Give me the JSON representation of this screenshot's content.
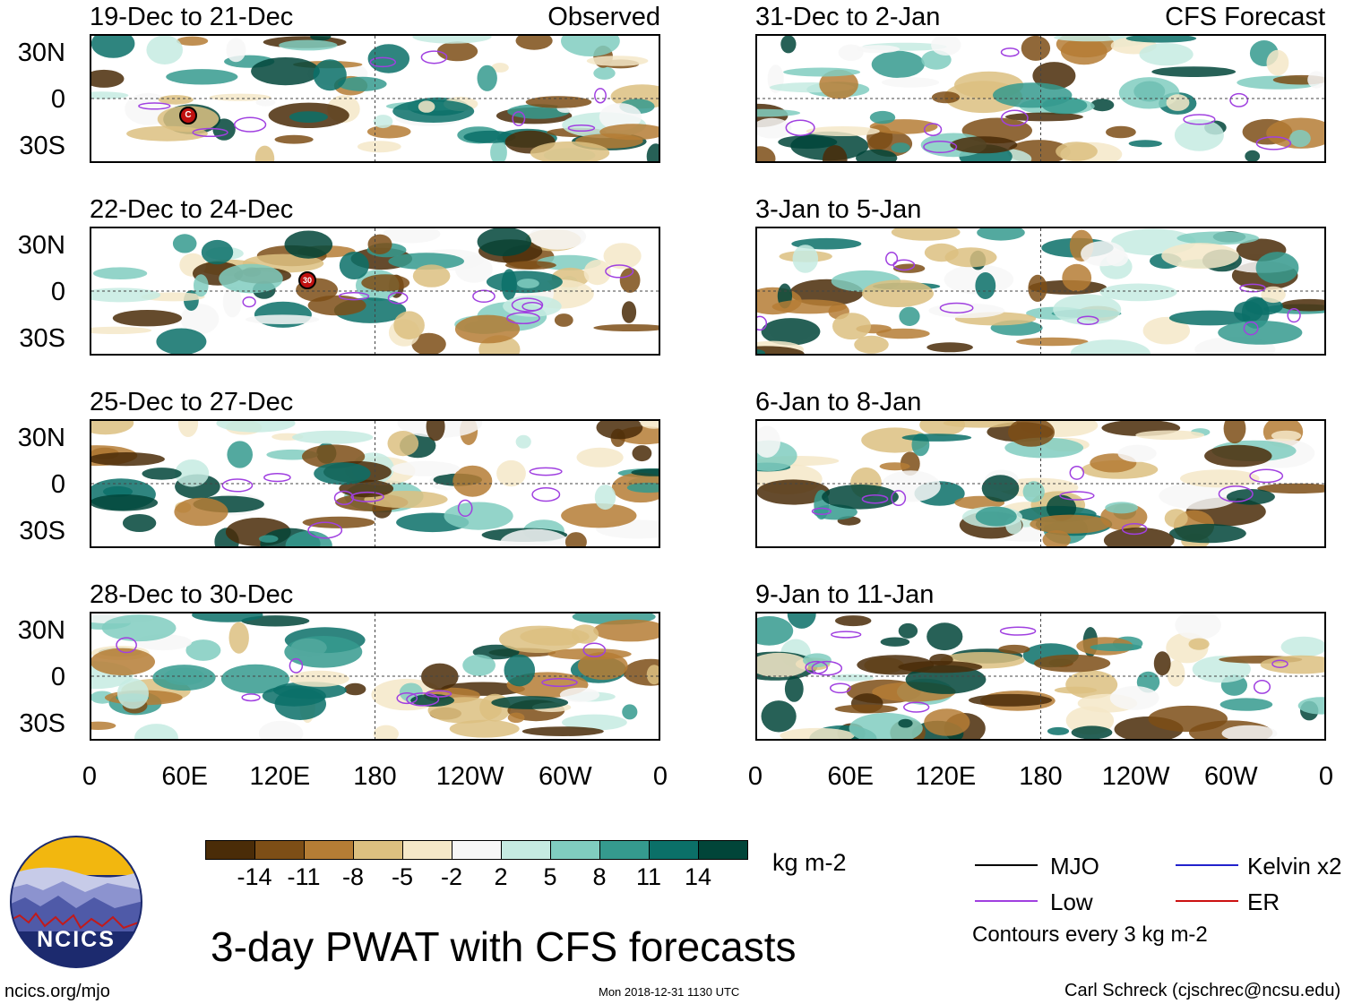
{
  "title": "3-day PWAT with CFS forecasts",
  "left_column_label": "Observed",
  "right_column_label": "CFS Forecast",
  "panels_observed": [
    {
      "title": "19-Dec to 21-Dec"
    },
    {
      "title": "22-Dec to 24-Dec"
    },
    {
      "title": "25-Dec to 27-Dec"
    },
    {
      "title": "28-Dec to 30-Dec"
    }
  ],
  "panels_forecast": [
    {
      "title": "31-Dec to 2-Jan"
    },
    {
      "title": "3-Jan to 5-Jan"
    },
    {
      "title": "6-Jan to 8-Jan"
    },
    {
      "title": "9-Jan to 11-Jan"
    }
  ],
  "lat_labels": [
    "30N",
    "0",
    "30S"
  ],
  "lon_labels": [
    "0",
    "60E",
    "120E",
    "180",
    "120W",
    "60W",
    "0"
  ],
  "colorbar": {
    "units": "kg m-2",
    "tick_labels": [
      "-14",
      "-11",
      "-8",
      "-5",
      "-2",
      "2",
      "5",
      "8",
      "11",
      "14"
    ],
    "colors": [
      "#4a2c08",
      "#7d4e16",
      "#b57d35",
      "#dcc080",
      "#f5e8c8",
      "#f7f7f7",
      "#c6ebe2",
      "#80cdbf",
      "#359a8e",
      "#0b7068",
      "#014539"
    ]
  },
  "legend": {
    "items": [
      {
        "label": "MJO",
        "color": "#000000"
      },
      {
        "label": "Kelvin x2",
        "color": "#2222cc"
      },
      {
        "label": "Low",
        "color": "#a040e0"
      },
      {
        "label": "ER",
        "color": "#cc1111"
      }
    ],
    "contour_note": "Contours every 3 kg m-2"
  },
  "storm_markers": [
    {
      "label": "C"
    },
    {
      "label": "30"
    }
  ],
  "logo": {
    "text": "NCICS"
  },
  "footer": {
    "website": "ncics.org/mjo",
    "timestamp": "Mon 2018-12-31 1130 UTC",
    "author": "Carl Schreck (cjschrec@ncsu.edu)"
  }
}
